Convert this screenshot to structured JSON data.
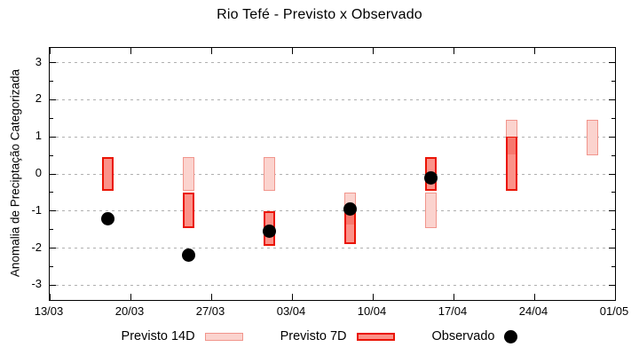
{
  "chart_data": {
    "type": "bar",
    "title": "Rio Tefé - Previsto x Observado",
    "ylabel": "Anomalia de Preciptação Categorizada",
    "xlabel": "",
    "ylim": [
      -3.4,
      3.4
    ],
    "y_ticks": [
      3,
      2,
      1,
      0,
      -1,
      -2,
      -3
    ],
    "y_minor_ticks": [
      2.5,
      1.5,
      0.5,
      -0.5,
      -1.5,
      -2.5
    ],
    "x_tick_labels": [
      "13/03",
      "20/03",
      "27/03",
      "03/04",
      "10/04",
      "17/04",
      "24/04",
      "01/05"
    ],
    "x_tick_days": [
      0,
      7,
      14,
      21,
      28,
      35,
      42,
      49
    ],
    "x_span_days": 49,
    "grid": "horizontal dotted lines at integer y values",
    "legend_position": "bottom, outside plot",
    "series_names": [
      "Previsto 14D",
      "Previsto 7D",
      "Observado"
    ],
    "clusters": [
      {
        "date": "18/03",
        "day": 5,
        "previsto_14d": null,
        "previsto_7d": [
          -0.45,
          0.45
        ],
        "observado": -1.2
      },
      {
        "date": "25/03",
        "day": 12,
        "previsto_14d": [
          -0.45,
          0.45
        ],
        "previsto_7d": [
          -1.45,
          -0.5
        ],
        "observado": -2.2
      },
      {
        "date": "01/04",
        "day": 19,
        "previsto_14d": [
          -0.45,
          0.45
        ],
        "previsto_7d": [
          -1.95,
          -1.0
        ],
        "observado": -1.55
      },
      {
        "date": "08/04",
        "day": 26,
        "previsto_14d": [
          -1.4,
          -0.5
        ],
        "previsto_7d": [
          -1.9,
          -1.0
        ],
        "observado": -0.95
      },
      {
        "date": "15/04",
        "day": 33,
        "previsto_14d": [
          -1.45,
          -0.5
        ],
        "previsto_7d": [
          -0.45,
          0.45
        ],
        "observado": -0.1
      },
      {
        "date": "22/04",
        "day": 40,
        "previsto_14d": [
          0.5,
          1.45
        ],
        "previsto_7d": [
          -0.45,
          1.0
        ],
        "observado": null
      },
      {
        "date": "29/04",
        "day": 47,
        "previsto_14d": [
          0.5,
          1.45
        ],
        "previsto_7d": null,
        "observado": null
      }
    ],
    "colors": {
      "previsto_14d_fill": "#fbd3ce",
      "previsto_14d_border": "#f1958c",
      "previsto_7d_fill": "#fb9289",
      "previsto_7d_border": "#ea1404",
      "overlap_fill": "#f7786e",
      "observado": "#000000",
      "grid": "#b0b0b0",
      "axis": "#000000"
    }
  },
  "legend": {
    "previsto_14d_label": "Previsto 14D",
    "previsto_7d_label": "Previsto 7D",
    "observado_label": "Observado"
  }
}
